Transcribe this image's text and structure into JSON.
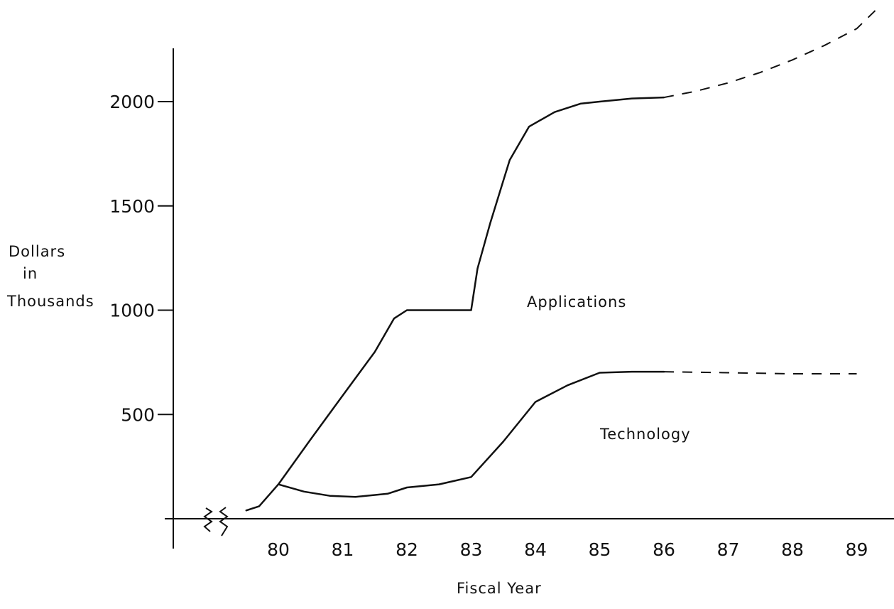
{
  "chart_data": {
    "type": "line",
    "title": "",
    "ylabel_lines": [
      "Dollars",
      "in",
      "Thousands"
    ],
    "xlabel": "Fiscal Year",
    "x_ticks": [
      "80",
      "81",
      "82",
      "83",
      "84",
      "85",
      "86",
      "87",
      "88",
      "89"
    ],
    "y_ticks": [
      "500",
      "1000",
      "1500",
      "2000"
    ],
    "ylim": [
      0,
      2200
    ],
    "xlim": [
      78.7,
      89.7
    ],
    "grid": false,
    "series": [
      {
        "name": "Applications",
        "actual": [
          [
            79.5,
            40
          ],
          [
            79.7,
            60
          ],
          [
            80.0,
            165
          ],
          [
            80.5,
            380
          ],
          [
            81.0,
            590
          ],
          [
            81.5,
            800
          ],
          [
            81.8,
            960
          ],
          [
            82.0,
            1000
          ],
          [
            82.5,
            1000
          ],
          [
            82.9,
            1000
          ],
          [
            83.0,
            1000
          ],
          [
            83.1,
            1200
          ],
          [
            83.3,
            1420
          ],
          [
            83.6,
            1720
          ],
          [
            83.9,
            1880
          ],
          [
            84.3,
            1950
          ],
          [
            84.7,
            1990
          ],
          [
            85.0,
            2000
          ],
          [
            85.5,
            2015
          ],
          [
            86.0,
            2020
          ]
        ],
        "projected": [
          [
            86.0,
            2020
          ],
          [
            86.5,
            2050
          ],
          [
            87.0,
            2090
          ],
          [
            87.5,
            2140
          ],
          [
            88.0,
            2200
          ],
          [
            88.5,
            2270
          ],
          [
            89.0,
            2350
          ],
          [
            89.3,
            2440
          ]
        ]
      },
      {
        "name": "Technology",
        "actual": [
          [
            80.0,
            165
          ],
          [
            80.4,
            130
          ],
          [
            80.8,
            110
          ],
          [
            81.2,
            105
          ],
          [
            81.7,
            120
          ],
          [
            82.0,
            150
          ],
          [
            82.5,
            165
          ],
          [
            83.0,
            200
          ],
          [
            83.5,
            370
          ],
          [
            84.0,
            560
          ],
          [
            84.5,
            640
          ],
          [
            85.0,
            700
          ],
          [
            85.5,
            705
          ],
          [
            86.0,
            705
          ]
        ],
        "projected": [
          [
            86.0,
            705
          ],
          [
            87.0,
            700
          ],
          [
            88.0,
            695
          ],
          [
            89.0,
            695
          ]
        ]
      }
    ]
  }
}
